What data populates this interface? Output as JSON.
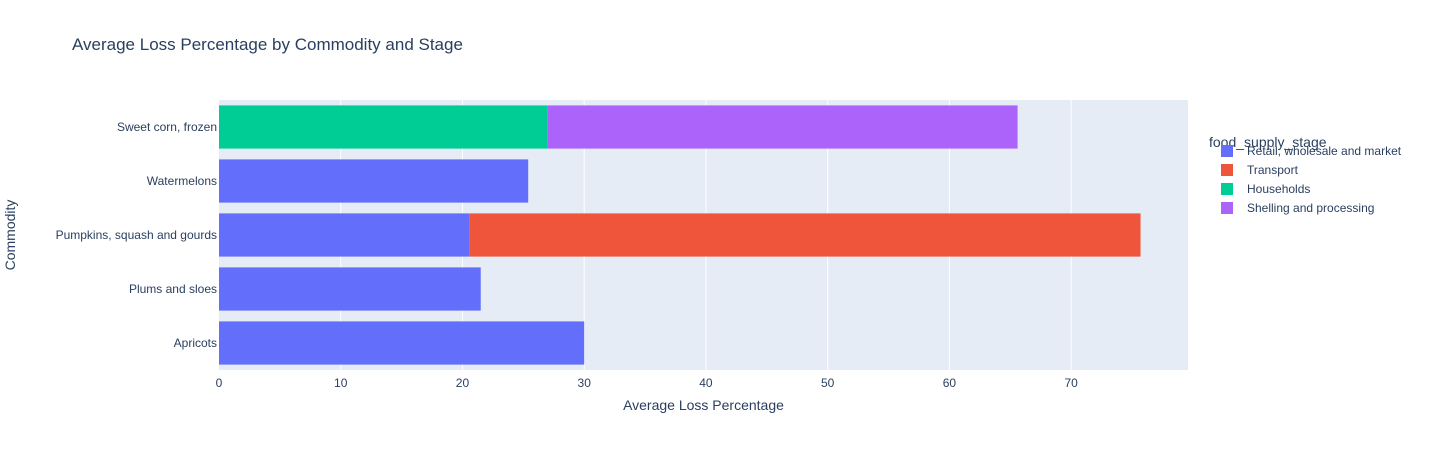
{
  "chart_data": {
    "type": "bar",
    "orientation": "horizontal",
    "barmode": "stack",
    "title": "Average Loss Percentage by Commodity and Stage",
    "xlabel": "Average Loss Percentage",
    "ylabel": "Commodity",
    "xlim": [
      0,
      79.6
    ],
    "x_ticks": [
      0,
      10,
      20,
      30,
      40,
      50,
      60,
      70
    ],
    "categories": [
      "Apricots",
      "Plums and sloes",
      "Pumpkins, squash and gourds",
      "Watermelons",
      "Sweet corn, frozen"
    ],
    "legend_title": "food_supply_stage",
    "legend_position": "right",
    "grid": true,
    "background": "#e5ecf6",
    "series": [
      {
        "name": "Retail, wholesale and market",
        "color": "#636efa",
        "values": [
          30.0,
          21.5,
          20.6,
          25.4,
          0
        ]
      },
      {
        "name": "Transport",
        "color": "#ef553b",
        "values": [
          0,
          0,
          55.1,
          0,
          0
        ]
      },
      {
        "name": "Households",
        "color": "#00cc96",
        "values": [
          0,
          0,
          0,
          0,
          27.0
        ]
      },
      {
        "name": "Shelling and processing",
        "color": "#ab63fa",
        "values": [
          0,
          0,
          0,
          0,
          38.6
        ]
      }
    ]
  }
}
